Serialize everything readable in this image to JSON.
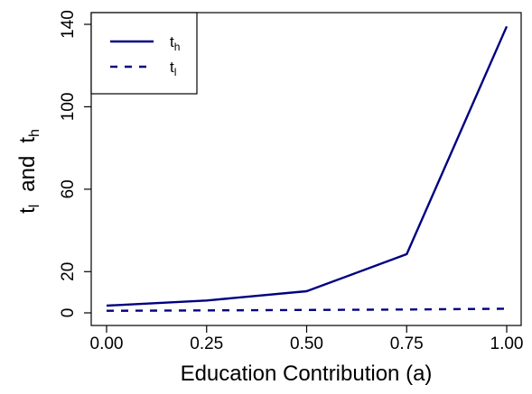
{
  "chart_data": {
    "type": "line",
    "xlabel": "Education Contribution (a)",
    "ylabel": {
      "prefix": "t",
      "sub1": "l",
      "mid": "and",
      "main2": "t",
      "sub2": "h"
    },
    "x": [
      0.0,
      0.25,
      0.5,
      0.75,
      1.0
    ],
    "xlim": [
      0.0,
      1.0
    ],
    "ylim": [
      0,
      140
    ],
    "xticks": [
      "0.00",
      "0.25",
      "0.50",
      "0.75",
      "1.00"
    ],
    "xtick_values": [
      0.0,
      0.25,
      0.5,
      0.75,
      1.0
    ],
    "yticks": [
      "0",
      "20",
      "60",
      "100",
      "140"
    ],
    "ytick_values": [
      0,
      20,
      60,
      100,
      140
    ],
    "series": [
      {
        "name": "t",
        "sub": "h",
        "style": "solid",
        "color": "#000080",
        "values": [
          3.5,
          6,
          10.5,
          28.5,
          139
        ]
      },
      {
        "name": "t",
        "sub": "l",
        "style": "dashed",
        "color": "#000080",
        "values": [
          1,
          1.2,
          1.4,
          1.6,
          2
        ]
      }
    ],
    "legend_position": "top-left",
    "grid": false
  }
}
